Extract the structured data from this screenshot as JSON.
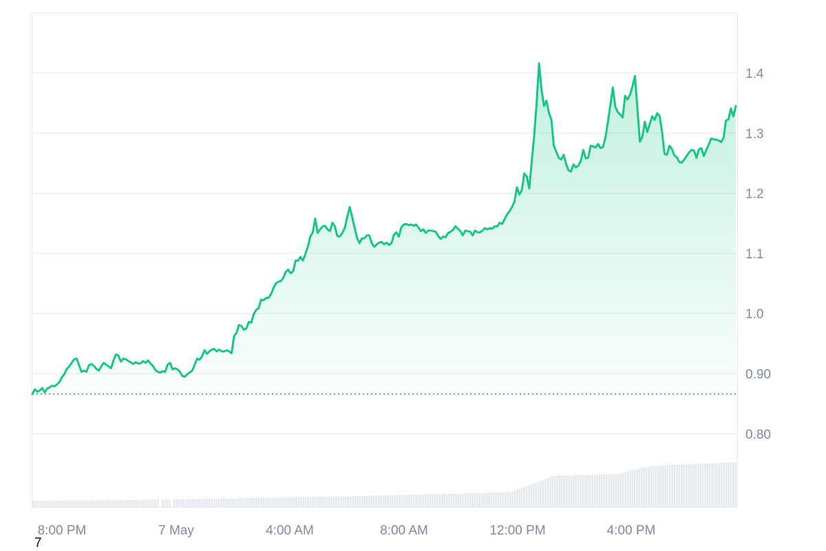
{
  "chart_data": {
    "type": "area",
    "x_tick_labels": [
      "8:00 PM",
      "7 May",
      "4:00 AM",
      "8:00 AM",
      "12:00 PM",
      "4:00 PM"
    ],
    "y_tick_labels": [
      "1.4",
      "1.3",
      "1.2",
      "1.1",
      "1.0",
      "0.90",
      "0.80"
    ],
    "y_ticks": [
      1.4,
      1.3,
      1.2,
      1.1,
      1.0,
      0.9,
      0.8
    ],
    "ylim": [
      0.785,
      1.5
    ],
    "baseline": 0.866,
    "grid": true,
    "colors": {
      "line": "#16c784",
      "area_top": "#16c784",
      "volume": "#e3e8ee",
      "grid": "#e9ecef",
      "tick_text": "#808a9d",
      "baseline": "#6b7280"
    },
    "series": [
      {
        "values": [
          0.866,
          0.874,
          0.87,
          0.872,
          0.876,
          0.869,
          0.875,
          0.877,
          0.88,
          0.879,
          0.882,
          0.886,
          0.894,
          0.899,
          0.908,
          0.912,
          0.918,
          0.924,
          0.925,
          0.914,
          0.903,
          0.905,
          0.903,
          0.914,
          0.916,
          0.913,
          0.908,
          0.905,
          0.912,
          0.918,
          0.915,
          0.912,
          0.909,
          0.922,
          0.932,
          0.93,
          0.92,
          0.925,
          0.924,
          0.921,
          0.919,
          0.916,
          0.919,
          0.917,
          0.917,
          0.921,
          0.918,
          0.922,
          0.917,
          0.913,
          0.906,
          0.903,
          0.902,
          0.904,
          0.903,
          0.915,
          0.918,
          0.907,
          0.909,
          0.907,
          0.903,
          0.896,
          0.895,
          0.899,
          0.902,
          0.905,
          0.915,
          0.925,
          0.923,
          0.929,
          0.939,
          0.933,
          0.937,
          0.94,
          0.941,
          0.937,
          0.94,
          0.937,
          0.937,
          0.939,
          0.937,
          0.934,
          0.962,
          0.968,
          0.981,
          0.979,
          0.973,
          0.975,
          0.986,
          0.985,
          0.999,
          1.006,
          1.009,
          1.023,
          1.022,
          1.026,
          1.026,
          1.032,
          1.042,
          1.05,
          1.053,
          1.054,
          1.059,
          1.069,
          1.073,
          1.067,
          1.07,
          1.088,
          1.088,
          1.094,
          1.088,
          1.099,
          1.111,
          1.128,
          1.135,
          1.158,
          1.134,
          1.14,
          1.145,
          1.146,
          1.14,
          1.137,
          1.151,
          1.145,
          1.129,
          1.128,
          1.134,
          1.142,
          1.16,
          1.177,
          1.161,
          1.143,
          1.126,
          1.117,
          1.125,
          1.125,
          1.13,
          1.13,
          1.117,
          1.111,
          1.115,
          1.118,
          1.119,
          1.115,
          1.118,
          1.114,
          1.117,
          1.131,
          1.135,
          1.128,
          1.143,
          1.148,
          1.149,
          1.147,
          1.148,
          1.146,
          1.148,
          1.143,
          1.137,
          1.14,
          1.134,
          1.138,
          1.138,
          1.137,
          1.136,
          1.129,
          1.124,
          1.128,
          1.127,
          1.134,
          1.136,
          1.139,
          1.145,
          1.141,
          1.137,
          1.13,
          1.138,
          1.137,
          1.136,
          1.13,
          1.138,
          1.135,
          1.135,
          1.138,
          1.142,
          1.14,
          1.142,
          1.141,
          1.145,
          1.145,
          1.151,
          1.149,
          1.157,
          1.165,
          1.17,
          1.177,
          1.186,
          1.21,
          1.198,
          1.205,
          1.233,
          1.228,
          1.208,
          1.251,
          1.295,
          1.349,
          1.416,
          1.373,
          1.345,
          1.354,
          1.334,
          1.323,
          1.279,
          1.269,
          1.259,
          1.256,
          1.264,
          1.249,
          1.238,
          1.236,
          1.248,
          1.243,
          1.246,
          1.254,
          1.272,
          1.258,
          1.259,
          1.279,
          1.278,
          1.276,
          1.282,
          1.275,
          1.277,
          1.293,
          1.319,
          1.347,
          1.376,
          1.344,
          1.335,
          1.331,
          1.326,
          1.362,
          1.356,
          1.364,
          1.378,
          1.395,
          1.34,
          1.286,
          1.294,
          1.319,
          1.302,
          1.315,
          1.328,
          1.322,
          1.333,
          1.329,
          1.303,
          1.266,
          1.264,
          1.279,
          1.274,
          1.263,
          1.26,
          1.252,
          1.251,
          1.256,
          1.262,
          1.268,
          1.272,
          1.271,
          1.259,
          1.273,
          1.275,
          1.262,
          1.272,
          1.281,
          1.291,
          1.29,
          1.289,
          1.288,
          1.285,
          1.292,
          1.321,
          1.323,
          1.341,
          1.328,
          1.345
        ]
      }
    ],
    "volume_bar_count": 300
  }
}
